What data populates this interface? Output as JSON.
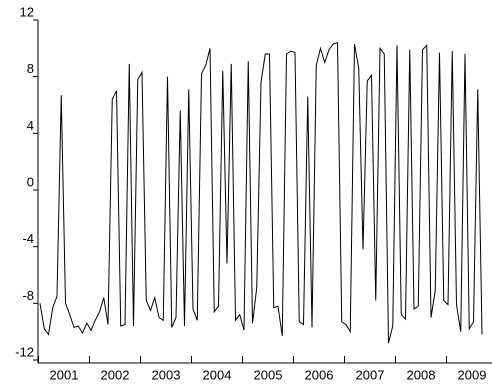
{
  "chart_data": {
    "type": "line",
    "categories": [
      "2001",
      null,
      null,
      null,
      null,
      null,
      null,
      null,
      null,
      null,
      null,
      null,
      "2002",
      null,
      null,
      null,
      null,
      null,
      null,
      null,
      null,
      null,
      null,
      null,
      "2003",
      null,
      null,
      null,
      null,
      null,
      null,
      null,
      null,
      null,
      null,
      null,
      "2004",
      null,
      null,
      null,
      null,
      null,
      null,
      null,
      null,
      null,
      null,
      null,
      "2005",
      null,
      null,
      null,
      null,
      null,
      null,
      null,
      null,
      null,
      null,
      null,
      "2006",
      null,
      null,
      null,
      null,
      null,
      null,
      null,
      null,
      null,
      null,
      null,
      "2007",
      null,
      null,
      null,
      null,
      null,
      null,
      null,
      null,
      null,
      null,
      null,
      "2008",
      null,
      null,
      null,
      null,
      null,
      null,
      null,
      null,
      null,
      null,
      null,
      "2009",
      null,
      null,
      null,
      null,
      null,
      null,
      null,
      null
    ],
    "values": [
      -8,
      -9.8,
      -10.2,
      -8.3,
      -7.5,
      6.7,
      -8,
      -8.8,
      -9.7,
      -9.6,
      -10.1,
      -9.4,
      -9.9,
      -9.2,
      -8.6,
      -7.6,
      -9.5,
      6.4,
      7,
      -9.6,
      -9.5,
      8.9,
      -9.6,
      7.8,
      8.3,
      -7.8,
      -8.5,
      -7.6,
      -9,
      -9.2,
      8,
      -9.7,
      -9,
      5.6,
      -9.6,
      7.1,
      -8.4,
      -9.2,
      8.2,
      8.8,
      10,
      -8.6,
      -8.2,
      8.4,
      -5.2,
      8.9,
      -9.2,
      -8.8,
      -9.9,
      9.1,
      -9.4,
      -6.9,
      7.6,
      9.6,
      9.6,
      -8.3,
      -8.2,
      -10.3,
      9.6,
      9.8,
      9.7,
      -9.3,
      -9.5,
      6.6,
      -9.7,
      8.8,
      10,
      9,
      9.9,
      10.3,
      10.4,
      -9.3,
      -9.5,
      -10,
      10.3,
      8.6,
      -4.2,
      7.7,
      8.1,
      -7.8,
      10,
      9.6,
      -10.8,
      -9.6,
      10.2,
      -8.8,
      -9.1,
      9.9,
      -8.4,
      -8.2,
      9.9,
      10.2,
      -9,
      -7.1,
      9.7,
      -7.8,
      -8.1,
      9.8,
      -8.1,
      -10,
      9.6,
      -9.8,
      -9.3,
      7.1,
      -10.2
    ],
    "color": "#000000",
    "ylim": [
      -12,
      12
    ],
    "yticks": [
      -12,
      -8,
      -4,
      0,
      4,
      8,
      12
    ]
  }
}
